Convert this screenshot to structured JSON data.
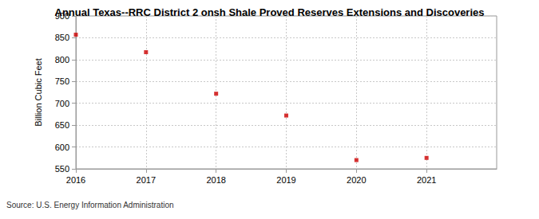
{
  "chart_data": {
    "type": "scatter",
    "title": "Annual Texas--RRC District 2 onsh Shale Proved Reserves Extensions and Discoveries",
    "y_label": "Billion Cubic Feet",
    "source": "Source: U.S. Energy Information Administration",
    "x": [
      2016,
      2017,
      2018,
      2019,
      2020,
      2021
    ],
    "values": [
      857,
      817,
      722,
      672,
      570,
      575
    ],
    "color": "#cc0000",
    "marker": "square",
    "xlim": [
      2016,
      2022
    ],
    "xticks": [
      2016,
      2017,
      2018,
      2019,
      2020,
      2021
    ],
    "ylim": [
      550,
      900
    ],
    "yticks": [
      550,
      600,
      650,
      700,
      750,
      800,
      850,
      900
    ],
    "grid": true
  }
}
